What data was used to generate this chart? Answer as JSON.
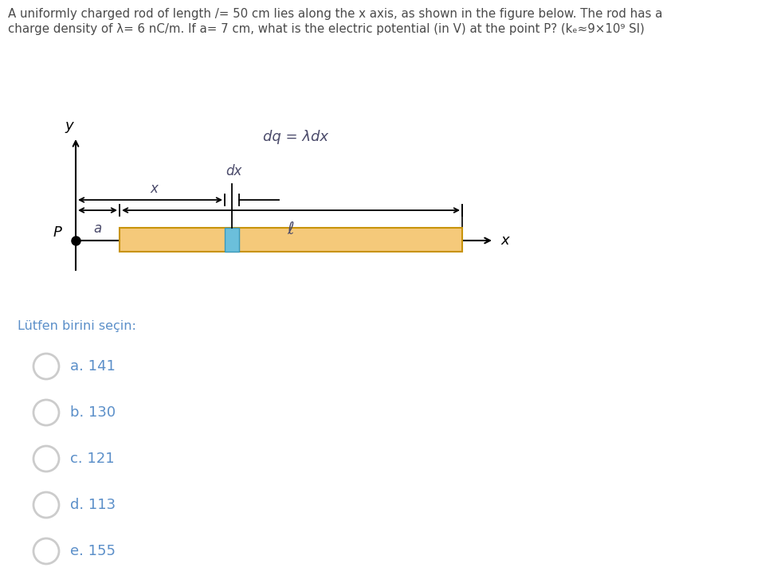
{
  "title_line1": "A uniformly charged rod of length /= 50 cm lies along the x axis, as shown in the figure below. The rod has a",
  "title_line2": "charge density of λ= 6 nC/m. If a= 7 cm, what is the electric potential (in V) at the point P? (kₑ≈9×10⁹ SI)",
  "question_color": "#4a4a4a",
  "fig_bg": "#ffffff",
  "rod_color": "#f5c97a",
  "rod_edge_color": "#c8930a",
  "dx_highlight_color": "#6bbfdb",
  "dq_label": "dq = λdx",
  "dx_label": "dx",
  "x_label": "x",
  "P_label": "P",
  "a_label": "a",
  "ell_label": "ℓ",
  "y_label": "y",
  "choices_header": "Lütfen birini seçin:",
  "choices": [
    "a. 141",
    "b. 130",
    "c. 121",
    "d. 113",
    "e. 155"
  ],
  "choices_color": "#5b8fc9",
  "header_color": "#5b8fc9",
  "arrow_color": "#000000",
  "label_italic_color": "#4a4a6a",
  "circle_color": "#cccccc",
  "rod_label_color": "#4a4a6a"
}
